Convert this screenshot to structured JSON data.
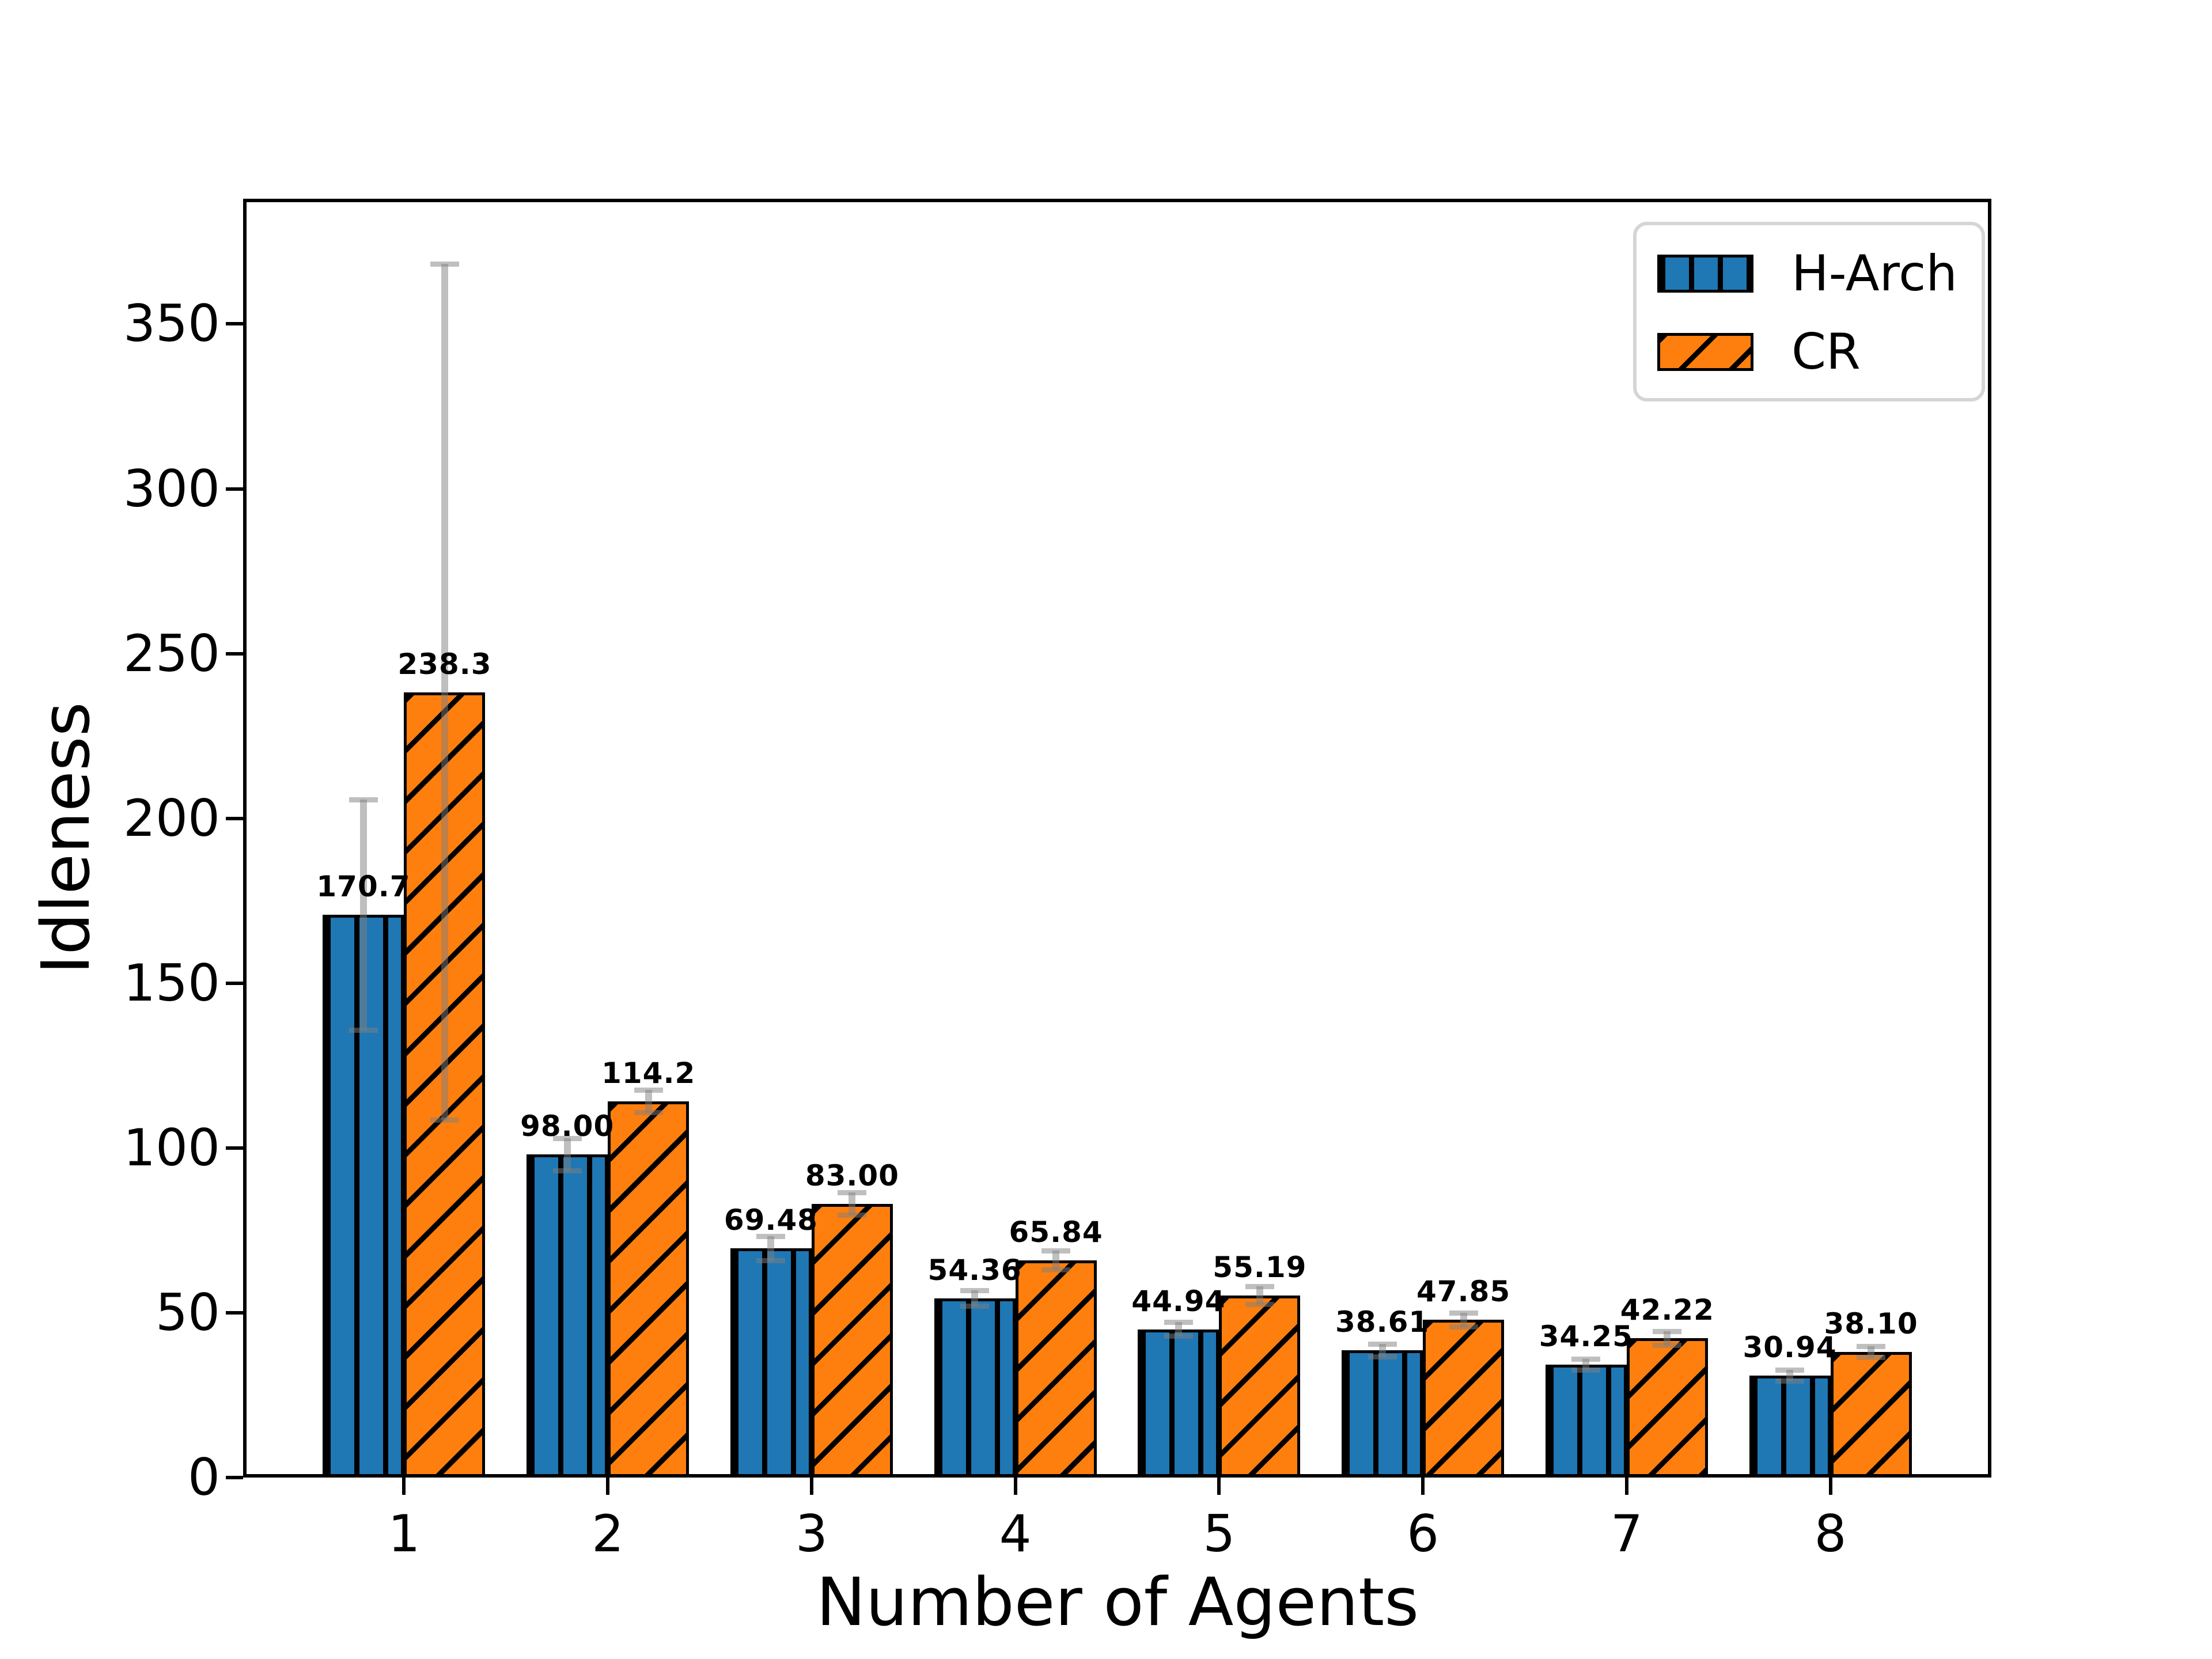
{
  "chart_data": {
    "type": "bar",
    "title": "",
    "xlabel": "Number of Agents",
    "ylabel": "Idleness",
    "categories": [
      "1",
      "2",
      "3",
      "4",
      "5",
      "6",
      "7",
      "8"
    ],
    "ylim": [
      0,
      388
    ],
    "yticks": [
      "0",
      "50",
      "100",
      "150",
      "200",
      "250",
      "300",
      "350"
    ],
    "grid": false,
    "legend_position": "upper right",
    "axis_color": "#000000",
    "error_color": "rgba(128,128,128,0.5)",
    "series": [
      {
        "name": "H-Arch",
        "color": "#1f77b4",
        "hatch": "vertical",
        "values": [
          170.7,
          98.0,
          69.48,
          54.36,
          44.94,
          38.61,
          34.25,
          30.94
        ],
        "value_labels": [
          "170.7",
          "98.00",
          "69.48",
          "54.36",
          "44.94",
          "38.61",
          "34.25",
          "30.94"
        ],
        "errors": [
          35,
          5,
          3.8,
          2.5,
          2.2,
          2.0,
          1.8,
          1.7
        ]
      },
      {
        "name": "CR",
        "color": "#ff7f0e",
        "hatch": "diagonal",
        "values": [
          238.3,
          114.2,
          83.0,
          65.84,
          55.19,
          47.85,
          42.22,
          38.1
        ],
        "value_labels": [
          "238.3",
          "114.2",
          "83.00",
          "65.84",
          "55.19",
          "47.85",
          "42.22",
          "38.10"
        ],
        "errors": [
          130,
          3.5,
          3.5,
          3.0,
          2.8,
          2.2,
          2.2,
          1.8
        ]
      }
    ]
  }
}
